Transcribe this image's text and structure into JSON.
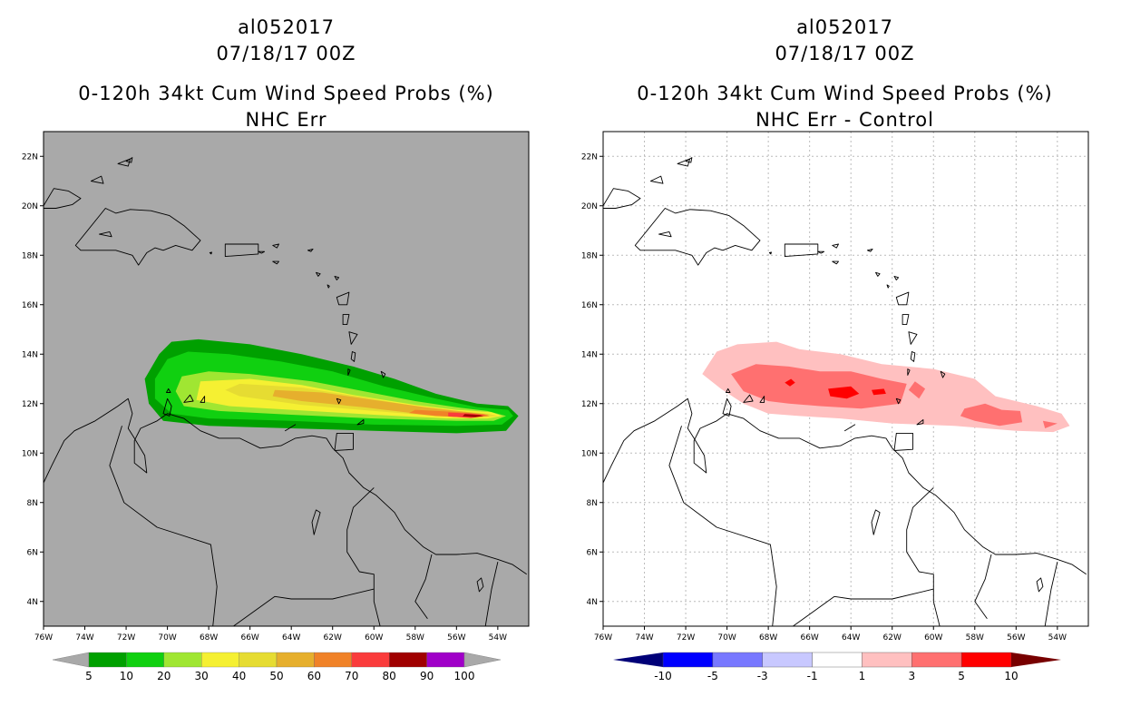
{
  "left_panel": {
    "title_line1": "al052017",
    "title_line2": "07/18/17 00Z",
    "title_line3": "0-120h 34kt Cum Wind Speed Probs (%)",
    "title_line4": "NHC Err"
  },
  "right_panel": {
    "title_line1": "al052017",
    "title_line2": "07/18/17 00Z",
    "title_line3": "0-120h 34kt Cum Wind Speed Probs (%)",
    "title_line4": "NHC Err - Control"
  },
  "colors": {
    "left_background": "#a9a9a9",
    "left_bins": [
      "#00a000",
      "#10d010",
      "#a0e632",
      "#f5f032",
      "#e6dc32",
      "#e6af2d",
      "#f08228",
      "#fa3c3c",
      "#a00000",
      "#a000c8"
    ],
    "right_bins": [
      "#000078",
      "#0000ff",
      "#7878ff",
      "#c8c8ff",
      "#ffffff",
      "#ffc0c0",
      "#ff7070",
      "#ff0000",
      "#780000"
    ]
  },
  "chart_data": [
    {
      "type": "heatmap",
      "title": "al052017 07/18/17 00Z 0-120h 34kt Cum Wind Speed Probs (%) NHC Err",
      "x_ticks": [
        "76W",
        "74W",
        "72W",
        "70W",
        "68W",
        "66W",
        "64W",
        "62W",
        "60W",
        "58W",
        "56W",
        "54W"
      ],
      "y_ticks": [
        "4N",
        "6N",
        "8N",
        "10N",
        "12N",
        "14N",
        "16N",
        "18N",
        "20N",
        "22N"
      ],
      "xlim_lon": [
        -76,
        -52.5
      ],
      "ylim_lat": [
        3,
        23
      ],
      "colorbar": {
        "labels": [
          "5",
          "10",
          "20",
          "30",
          "40",
          "50",
          "60",
          "70",
          "80",
          "90",
          "100"
        ]
      },
      "max_probability_location": {
        "lon": -54.7,
        "lat": 11.5
      },
      "contour_levels": [
        5,
        10,
        20,
        30,
        40,
        50,
        60,
        70,
        80,
        90
      ]
    },
    {
      "type": "heatmap",
      "title": "al052017 07/18/17 00Z 0-120h 34kt Cum Wind Speed Probs (%) NHC Err - Control",
      "x_ticks": [
        "76W",
        "74W",
        "72W",
        "70W",
        "68W",
        "66W",
        "64W",
        "62W",
        "60W",
        "58W",
        "56W",
        "54W"
      ],
      "y_ticks": [
        "4N",
        "6N",
        "8N",
        "10N",
        "12N",
        "14N",
        "16N",
        "18N",
        "20N",
        "22N"
      ],
      "xlim_lon": [
        -76,
        -52.5
      ],
      "ylim_lat": [
        3,
        23
      ],
      "grid": true,
      "colorbar": {
        "labels": [
          "-10",
          "-5",
          "-3",
          "-1",
          "1",
          "3",
          "5",
          "10"
        ]
      },
      "contour_levels": [
        1,
        3,
        5
      ]
    }
  ]
}
